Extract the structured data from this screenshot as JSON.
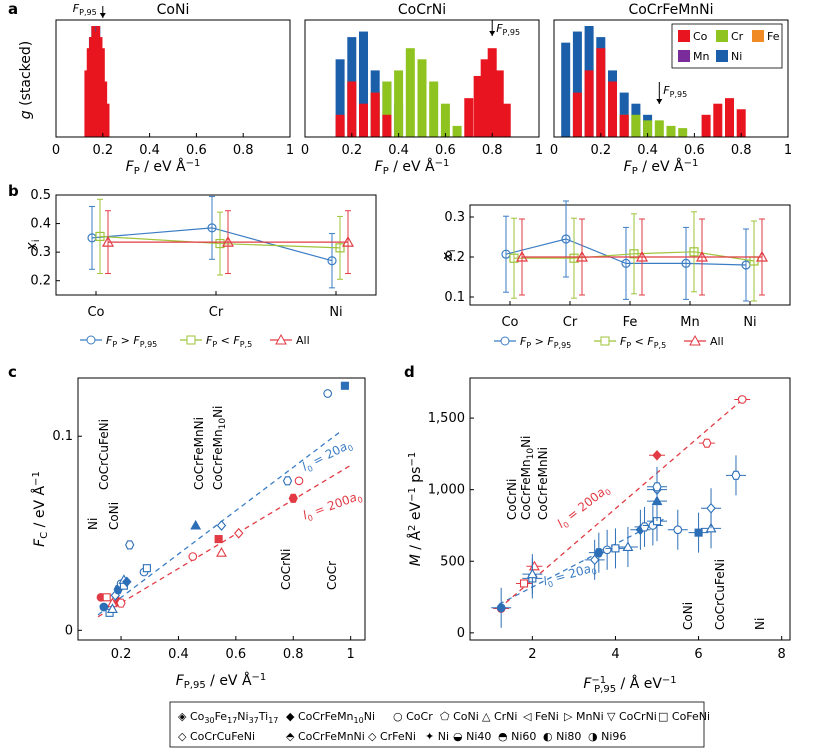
{
  "chart_data": [
    {
      "panel": "a",
      "type": "bar",
      "ylabel": "g (stacked)",
      "xlabel": "F_P / eV Å^-1",
      "xlim": [
        0,
        1
      ],
      "xticks": [
        "0",
        "0.2",
        "0.4",
        "0.6",
        "0.8",
        "1"
      ],
      "legend": {
        "placement": "top-right",
        "entries": [
          "Co",
          "Cr",
          "Fe",
          "Mn",
          "Ni"
        ]
      },
      "colors": {
        "Co": "#e8141f",
        "Cr": "#8fc31f",
        "Fe": "#f08a24",
        "Mn": "#7b2c9b",
        "Ni": "#1b5faa"
      },
      "subplots": [
        {
          "title": "CoNi",
          "marker_label": "F_P,95",
          "marker_x": 0.2,
          "series": [
            {
              "name": "Co",
              "x": [
                0.13,
                0.14,
                0.15,
                0.16,
                0.17,
                0.18,
                0.19,
                0.2,
                0.21,
                0.22
              ],
              "y": [
                0.6,
                0.8,
                0.9,
                1.0,
                0.95,
                1.0,
                0.9,
                0.8,
                0.5,
                0.3
              ]
            },
            {
              "name": "Ni",
              "x": [
                0.15,
                0.16,
                0.17
              ],
              "y": [
                0.2,
                0.9,
                1.0
              ]
            }
          ]
        },
        {
          "title": "CoCrNi",
          "marker_label": "F_P,95",
          "marker_x": 0.8,
          "series": [
            {
              "name": "Co",
              "x": [
                0.15,
                0.2,
                0.25,
                0.3,
                0.35,
                0.7,
                0.74,
                0.77,
                0.8,
                0.83,
                0.86
              ],
              "y": [
                0.2,
                0.5,
                0.3,
                0.4,
                0.2,
                0.35,
                0.55,
                0.7,
                0.8,
                0.6,
                0.3
              ]
            },
            {
              "name": "Cr",
              "x": [
                0.3,
                0.35,
                0.4,
                0.45,
                0.5,
                0.55,
                0.6,
                0.65
              ],
              "y": [
                0.4,
                0.5,
                0.6,
                0.8,
                0.7,
                0.5,
                0.3,
                0.1
              ]
            },
            {
              "name": "Ni",
              "x": [
                0.15,
                0.2,
                0.25,
                0.3,
                0.35,
                0.4
              ],
              "y": [
                0.7,
                0.9,
                0.95,
                0.6,
                0.5,
                0.3
              ]
            }
          ]
        },
        {
          "title": "CoCrFeMnNi",
          "marker_label": "F_P,95",
          "marker_x": 0.45,
          "series": [
            {
              "name": "Co",
              "x": [
                0.1,
                0.15,
                0.2,
                0.25,
                0.3,
                0.65,
                0.7,
                0.75,
                0.8
              ],
              "y": [
                0.4,
                0.6,
                0.8,
                0.5,
                0.2,
                0.2,
                0.3,
                0.35,
                0.25
              ]
            },
            {
              "name": "Cr",
              "x": [
                0.3,
                0.35,
                0.4,
                0.45,
                0.5,
                0.55
              ],
              "y": [
                0.2,
                0.2,
                0.15,
                0.15,
                0.1,
                0.08
              ]
            },
            {
              "name": "Ni",
              "x": [
                0.05,
                0.1,
                0.15,
                0.2,
                0.25,
                0.3,
                0.35,
                0.4
              ],
              "y": [
                0.85,
                0.95,
                1.0,
                0.9,
                0.6,
                0.4,
                0.3,
                0.2
              ]
            }
          ]
        }
      ]
    },
    {
      "panel": "b-left",
      "type": "line",
      "ylabel": "x_i",
      "categories": [
        "Co",
        "Cr",
        "Ni"
      ],
      "ylim": [
        0.15,
        0.5
      ],
      "yticks": [
        "0.2",
        "0.3",
        "0.4",
        "0.5"
      ],
      "series": [
        {
          "name": "F_P > F_P,95",
          "values": [
            0.35,
            0.385,
            0.27
          ],
          "err": [
            0.11,
            0.11,
            0.095
          ]
        },
        {
          "name": "F_P < F_P,5",
          "values": [
            0.355,
            0.33,
            0.315
          ],
          "err": [
            0.13,
            0.11,
            0.11
          ]
        },
        {
          "name": "All",
          "values": [
            0.335,
            0.335,
            0.335
          ],
          "err": [
            0.11,
            0.11,
            0.11
          ]
        }
      ]
    },
    {
      "panel": "b-right",
      "type": "line",
      "ylabel": "x_i",
      "categories": [
        "Co",
        "Cr",
        "Fe",
        "Mn",
        "Ni"
      ],
      "ylim": [
        0.08,
        0.33
      ],
      "yticks": [
        "0.1",
        "0.2",
        "0.3"
      ],
      "series": [
        {
          "name": "F_P > F_P,95",
          "values": [
            0.207,
            0.245,
            0.184,
            0.184,
            0.18
          ],
          "err": [
            0.095,
            0.095,
            0.09,
            0.09,
            0.09
          ]
        },
        {
          "name": "F_P < F_P,5",
          "values": [
            0.197,
            0.197,
            0.208,
            0.213,
            0.19
          ],
          "err": [
            0.1,
            0.1,
            0.1,
            0.1,
            0.1
          ]
        },
        {
          "name": "All",
          "values": [
            0.2,
            0.2,
            0.2,
            0.2,
            0.2
          ],
          "err": [
            0.095,
            0.095,
            0.095,
            0.095,
            0.095
          ]
        }
      ]
    },
    {
      "panel": "c",
      "type": "scatter",
      "xlabel": "F_P,95 / eV Å^-1",
      "ylabel": "F_C / eV Å^-1",
      "xlim": [
        0.05,
        1.05
      ],
      "ylim": [
        -0.005,
        0.13
      ],
      "xticks": [
        "0.2",
        "0.4",
        "0.6",
        "0.8",
        "1"
      ],
      "yticks": [
        "0",
        "0.1"
      ],
      "fit_lines": [
        {
          "label": "l_0 = 20a_0",
          "color": "#3b7dc4",
          "x": [
            0.12,
            0.97
          ],
          "y": [
            0.008,
            0.103
          ]
        },
        {
          "label": "l_0 = 200a_0",
          "color": "#e23b45",
          "x": [
            0.12,
            1.0
          ],
          "y": [
            0.007,
            0.085
          ]
        }
      ],
      "blue_points": [
        [
          0.14,
          0.012
        ],
        [
          0.16,
          0.009
        ],
        [
          0.17,
          0.011
        ],
        [
          0.18,
          0.018
        ],
        [
          0.19,
          0.021
        ],
        [
          0.2,
          0.024
        ],
        [
          0.21,
          0.023
        ],
        [
          0.21,
          0.026
        ],
        [
          0.22,
          0.025
        ],
        [
          0.23,
          0.044
        ],
        [
          0.28,
          0.03
        ],
        [
          0.29,
          0.032
        ],
        [
          0.46,
          0.054
        ],
        [
          0.55,
          0.054
        ],
        [
          0.78,
          0.077
        ],
        [
          0.92,
          0.122
        ],
        [
          0.98,
          0.126
        ]
      ],
      "red_points": [
        [
          0.13,
          0.017
        ],
        [
          0.15,
          0.017
        ],
        [
          0.17,
          0.014
        ],
        [
          0.19,
          0.015
        ],
        [
          0.2,
          0.014
        ],
        [
          0.45,
          0.038
        ],
        [
          0.54,
          0.047
        ],
        [
          0.55,
          0.04
        ],
        [
          0.61,
          0.05
        ],
        [
          0.8,
          0.068
        ],
        [
          0.82,
          0.077
        ]
      ],
      "vertical_labels": [
        "CoCrCuFeNi",
        "Ni",
        "CoNi",
        "CoCrFeMnNi",
        "CoCrFeMn10Ni",
        "CoCrNi",
        "CoCr"
      ]
    },
    {
      "panel": "d",
      "type": "scatter",
      "xlabel": "F_P,95^-1 / Å eV^-1",
      "ylabel": "M / Å^2 eV^-1 ps^-1",
      "xlim": [
        0.5,
        8.2
      ],
      "ylim": [
        -50,
        1780
      ],
      "xticks": [
        "2",
        "4",
        "6",
        "8"
      ],
      "yticks": [
        "0",
        "500",
        "1,000",
        "1,500"
      ],
      "fit_lines": [
        {
          "label": "l_0 = 20a_0",
          "color": "#3b7dc4",
          "x": [
            1.2,
            5.2
          ],
          "y": [
            200,
            800
          ]
        },
        {
          "label": "l_0 = 200a_0",
          "color": "#e23b45",
          "x": [
            1.2,
            7.1
          ],
          "y": [
            170,
            1640
          ]
        }
      ],
      "blue_points": [
        [
          1.25,
          175
        ],
        [
          2.0,
          380
        ],
        [
          2.0,
          410
        ],
        [
          3.5,
          510
        ],
        [
          3.6,
          560
        ],
        [
          3.8,
          580
        ],
        [
          4.0,
          590
        ],
        [
          4.3,
          600
        ],
        [
          4.6,
          720
        ],
        [
          4.7,
          740
        ],
        [
          4.9,
          750
        ],
        [
          5.0,
          780
        ],
        [
          5.0,
          920
        ],
        [
          5.0,
          1000
        ],
        [
          5.0,
          1020
        ],
        [
          5.5,
          720
        ],
        [
          6.0,
          700
        ],
        [
          6.3,
          730
        ],
        [
          6.3,
          870
        ],
        [
          6.9,
          1100
        ]
      ],
      "red_points": [
        [
          1.25,
          170
        ],
        [
          1.8,
          345
        ],
        [
          2.05,
          465
        ],
        [
          5.0,
          1240
        ],
        [
          6.2,
          1325
        ],
        [
          7.05,
          1630
        ]
      ],
      "vertical_labels": [
        "CoCrNi",
        "CoCrFeMn10Ni",
        "CoCrFeMnNi",
        "CoNi",
        "CoCrCuFeNi",
        "Ni"
      ]
    }
  ],
  "legends": {
    "b": [
      "F_P > F_P,95",
      "F_P < F_P,5",
      "All"
    ],
    "bottom": [
      "Co30Fe17Ni37Ti17",
      "CoCrFeMn10Ni",
      "CoCr",
      "CoNi",
      "CrNi",
      "FeNi",
      "MnNi",
      "CoCrNi",
      "CoFeNi",
      "CoCrCuFeNi",
      "CoCrFeMnNi",
      "CrFeNi",
      "Ni",
      "Ni40",
      "Ni60",
      "Ni80",
      "Ni96"
    ]
  }
}
